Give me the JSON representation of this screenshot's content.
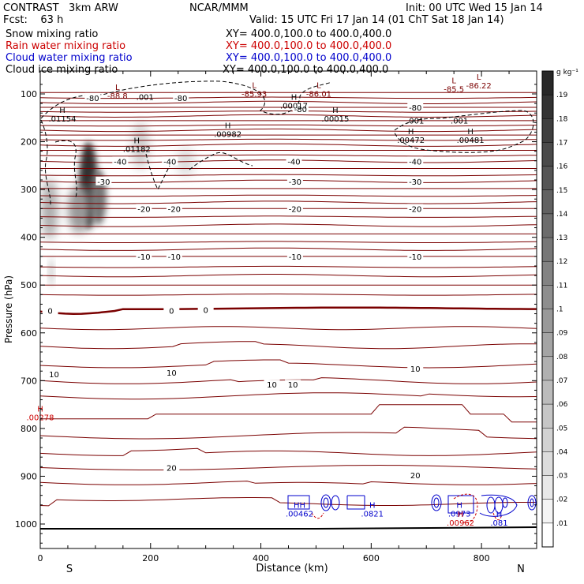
{
  "header": {
    "project": "CONTRAST",
    "model": "3km ARW",
    "org": "NCAR/MMM",
    "init": "Init: 00 UTC Wed 15 Jan 14",
    "fcst_label": "Fcst:",
    "fcst_value": "63 h",
    "valid": "Valid: 15 UTC Fri 17 Jan 14 (01 ChT Sat 18 Jan 14)"
  },
  "legend": [
    {
      "name": "Snow mixing ratio",
      "xy": "XY= 400.0,100.0 to 400.0,400.0",
      "color": "#000000"
    },
    {
      "name": "Rain water mixing ratio",
      "xy": "XY= 400.0,100.0 to 400.0,400.0",
      "color": "#cc0000"
    },
    {
      "name": "Cloud water mixing ratio",
      "xy": "XY= 400.0,100.0 to 400.0,400.0",
      "color": "#0000cc"
    },
    {
      "name": "Cloud ice mixing ratio",
      "xy": "XY= 400.0,100.0 to 400.0,400.0",
      "color": "#000000"
    }
  ],
  "colorbar": {
    "unit": "g kg⁻¹",
    "labels": [
      ".19",
      ".18",
      ".17",
      ".16",
      ".15",
      ".14",
      ".13",
      ".12",
      ".11",
      ".1",
      ".09",
      ".08",
      ".07",
      ".06",
      ".05",
      ".04",
      ".03",
      ".02",
      ".01"
    ]
  },
  "chart_data": {
    "type": "contour",
    "xlabel": "Distance (km)",
    "ylabel": "Pressure (hPa)",
    "xlim": [
      0,
      900
    ],
    "ylim": [
      1050,
      70
    ],
    "x_ticks": [
      {
        "v": 0,
        "label": "0"
      },
      {
        "v": 200,
        "label": "200"
      },
      {
        "v": 400,
        "label": "400"
      },
      {
        "v": 600,
        "label": "600"
      },
      {
        "v": 800,
        "label": "800"
      }
    ],
    "y_ticks": [
      {
        "v": 100,
        "label": "100"
      },
      {
        "v": 200,
        "label": "200"
      },
      {
        "v": 300,
        "label": "300"
      },
      {
        "v": 400,
        "label": "400"
      },
      {
        "v": 500,
        "label": "500"
      },
      {
        "v": 600,
        "label": "600"
      },
      {
        "v": 700,
        "label": "700"
      },
      {
        "v": 800,
        "label": "800"
      },
      {
        "v": 900,
        "label": "900"
      },
      {
        "v": 1000,
        "label": "1000"
      }
    ],
    "direction_labels": {
      "left": "S",
      "right": "N"
    },
    "isotherm_levels_C": [
      -80,
      -70,
      -60,
      -50,
      -40,
      -30,
      -20,
      -10,
      0,
      10,
      20
    ],
    "isotherm_labels": [
      {
        "x": 95,
        "p": 108,
        "text": "-80"
      },
      {
        "x": 255,
        "p": 108,
        "text": "-80"
      },
      {
        "x": 472,
        "p": 131,
        "text": "-80"
      },
      {
        "x": 680,
        "p": 128,
        "text": "-80"
      },
      {
        "x": 145,
        "p": 241,
        "text": "-40"
      },
      {
        "x": 235,
        "p": 241,
        "text": "-40"
      },
      {
        "x": 460,
        "p": 241,
        "text": "-40"
      },
      {
        "x": 680,
        "p": 241,
        "text": "-40"
      },
      {
        "x": 115,
        "p": 283,
        "text": "-30"
      },
      {
        "x": 462,
        "p": 283,
        "text": "-30"
      },
      {
        "x": 680,
        "p": 283,
        "text": "-30"
      },
      {
        "x": 188,
        "p": 340,
        "text": "-20"
      },
      {
        "x": 243,
        "p": 340,
        "text": "-20"
      },
      {
        "x": 462,
        "p": 340,
        "text": "-20"
      },
      {
        "x": 680,
        "p": 340,
        "text": "-20"
      },
      {
        "x": 188,
        "p": 440,
        "text": "-10"
      },
      {
        "x": 243,
        "p": 440,
        "text": "-10"
      },
      {
        "x": 462,
        "p": 440,
        "text": "-10"
      },
      {
        "x": 680,
        "p": 440,
        "text": "-10"
      },
      {
        "x": 18,
        "p": 553,
        "text": "0"
      },
      {
        "x": 238,
        "p": 553,
        "text": "0"
      },
      {
        "x": 300,
        "p": 552,
        "text": "0"
      },
      {
        "x": 25,
        "p": 686,
        "text": "10"
      },
      {
        "x": 238,
        "p": 683,
        "text": "10"
      },
      {
        "x": 420,
        "p": 708,
        "text": "10"
      },
      {
        "x": 458,
        "p": 708,
        "text": "10"
      },
      {
        "x": 680,
        "p": 675,
        "text": "10"
      },
      {
        "x": 238,
        "p": 882,
        "text": "20"
      },
      {
        "x": 680,
        "p": 898,
        "text": "20"
      }
    ],
    "extrema": [
      {
        "kind": "L",
        "x": 140,
        "p": 92,
        "value": "-88.8",
        "color": "#7a0000"
      },
      {
        "kind": "L",
        "x": 388,
        "p": 88,
        "value": "-85.93",
        "color": "#7a0000"
      },
      {
        "kind": "L",
        "x": 505,
        "p": 88,
        "value": "-86.01",
        "color": "#7a0000"
      },
      {
        "kind": "L",
        "x": 750,
        "p": 78,
        "value": "-85.5",
        "color": "#7a0000"
      },
      {
        "kind": "L",
        "x": 795,
        "p": 70,
        "value": "-86.22",
        "color": "#7a0000"
      },
      {
        "kind": "H",
        "x": 40,
        "p": 140,
        "value": ".01154",
        "color": "#000000"
      },
      {
        "kind": "H",
        "x": 175,
        "p": 203,
        "value": ".01182",
        "color": "#000000"
      },
      {
        "kind": "H",
        "x": 340,
        "p": 172,
        "value": ".00982",
        "color": "#000000"
      },
      {
        "kind": "H",
        "x": 460,
        "p": 112,
        "value": ".00017",
        "color": "#000000"
      },
      {
        "kind": "H",
        "x": 535,
        "p": 140,
        "value": ".00015",
        "color": "#000000"
      },
      {
        "kind": "H",
        "x": 672,
        "p": 184,
        "value": ".00472",
        "color": "#000000"
      },
      {
        "kind": "H",
        "x": 780,
        "p": 184,
        "value": ".00481",
        "color": "#000000"
      },
      {
        "kind": "H",
        "x": 0,
        "p": 765,
        "value": ".00278",
        "color": "#cc0000"
      },
      {
        "kind": "HH",
        "x": 470,
        "p": 966,
        "value": ".00462",
        "color": "#0000cc"
      },
      {
        "kind": "H",
        "x": 602,
        "p": 966,
        "value": ".0821",
        "color": "#0000cc"
      },
      {
        "kind": "H",
        "x": 760,
        "p": 966,
        "value": ".0973",
        "color": "#0000cc"
      },
      {
        "kind": "H",
        "x": 762,
        "p": 985,
        "value": ".00962",
        "color": "#cc0000"
      },
      {
        "kind": "H",
        "x": 832,
        "p": 985,
        "value": ".081",
        "color": "#0000cc"
      }
    ],
    "ice_labels": [
      {
        "x": 190,
        "p": 106,
        "text": ".001"
      },
      {
        "x": 680,
        "p": 155,
        "text": ".001"
      },
      {
        "x": 760,
        "p": 155,
        "text": ".001"
      }
    ]
  }
}
